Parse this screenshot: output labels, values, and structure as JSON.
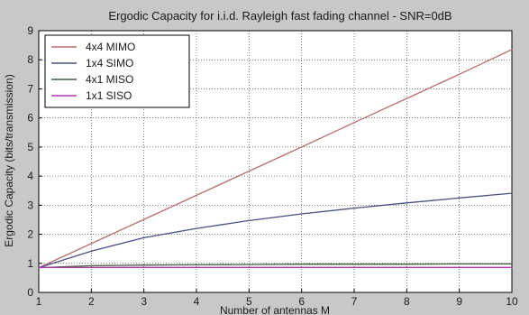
{
  "chart_data": {
    "type": "line",
    "title": "Ergodic Capacity for i.i.d. Rayleigh fast fading channel - SNR=0dB",
    "xlabel": "Number of antennas M",
    "ylabel": "Ergodic Capacity (bits/transmission)",
    "x": [
      1,
      2,
      3,
      4,
      5,
      6,
      7,
      8,
      9,
      10
    ],
    "xlim": [
      1,
      10
    ],
    "ylim": [
      0,
      9
    ],
    "xticks": [
      "1",
      "2",
      "3",
      "4",
      "5",
      "6",
      "7",
      "8",
      "9",
      "10"
    ],
    "yticks": [
      "0",
      "1",
      "2",
      "3",
      "4",
      "5",
      "6",
      "7",
      "8",
      "9"
    ],
    "grid": true,
    "legend_position": "top-left",
    "series": [
      {
        "name": "4x4 MIMO",
        "color": "#b8706e",
        "values": [
          0.85,
          1.68,
          2.51,
          3.34,
          4.17,
          5.0,
          5.84,
          6.67,
          7.5,
          8.35
        ]
      },
      {
        "name": "1x4 SIMO",
        "color": "#4a4f82",
        "values": [
          0.85,
          1.42,
          1.88,
          2.2,
          2.47,
          2.7,
          2.9,
          3.08,
          3.25,
          3.41
        ]
      },
      {
        "name": "4x1 MISO",
        "color": "#3f5e3f",
        "values": [
          0.85,
          0.92,
          0.94,
          0.95,
          0.96,
          0.97,
          0.97,
          0.97,
          0.98,
          0.98
        ]
      },
      {
        "name": "1x1 SISO",
        "color": "#b533b5",
        "values": [
          0.86,
          0.86,
          0.86,
          0.86,
          0.86,
          0.86,
          0.86,
          0.86,
          0.86,
          0.86
        ]
      }
    ]
  }
}
